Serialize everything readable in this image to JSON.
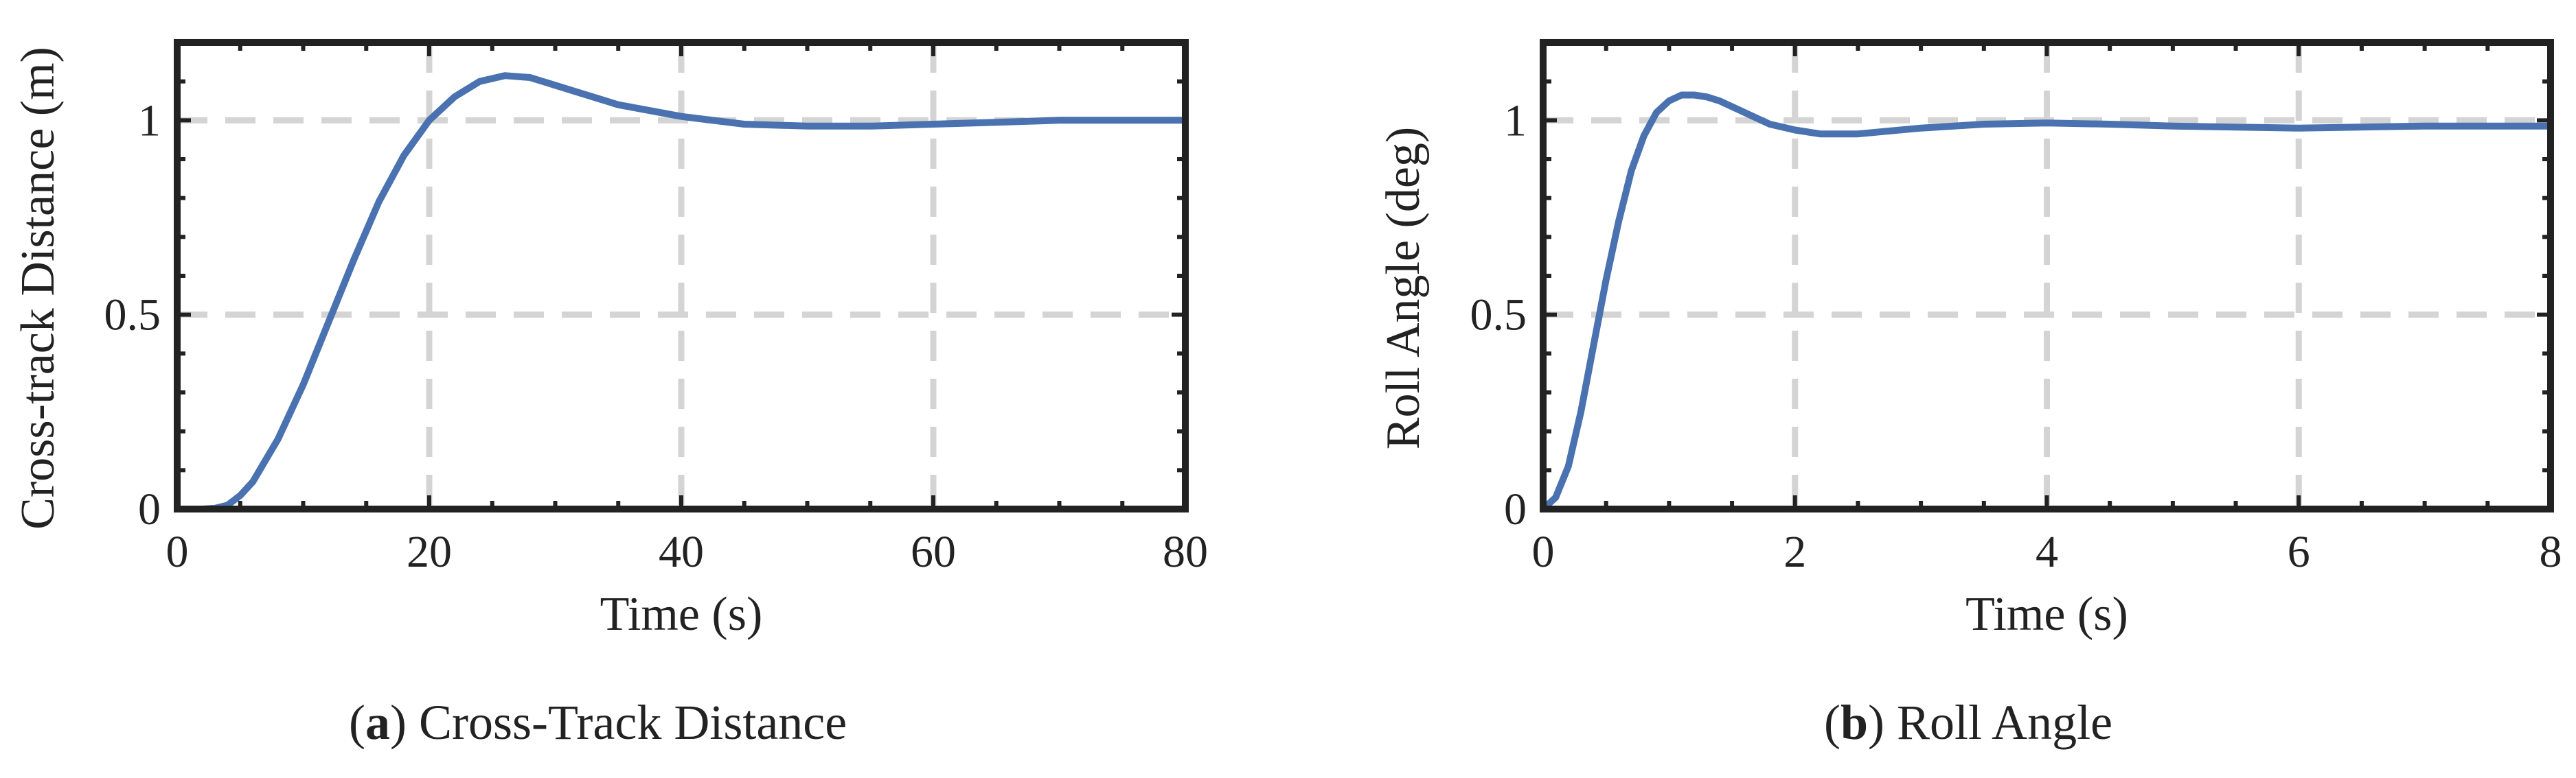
{
  "chart_data": [
    {
      "type": "line",
      "id": "a",
      "xlabel": "Time (s)",
      "ylabel": "Cross-track Distance (m)",
      "xlim": [
        0,
        80
      ],
      "ylim": [
        0,
        1.2
      ],
      "xticks": [
        0,
        20,
        40,
        60,
        80
      ],
      "xtick_labels": [
        "0",
        "20",
        "40",
        "60",
        "80"
      ],
      "yticks": [
        0,
        0.5,
        1
      ],
      "ytick_labels": [
        "0",
        "0.5",
        "1"
      ],
      "grid": true,
      "line_color": "#4a72b0",
      "series": [
        {
          "x": [
            0,
            2,
            3,
            4,
            5,
            6,
            8,
            10,
            12,
            14,
            16,
            18,
            20,
            22,
            24,
            26,
            28,
            30,
            32,
            35,
            40,
            45,
            50,
            55,
            60,
            65,
            70,
            75,
            80
          ],
          "values": [
            0,
            0,
            0.002,
            0.01,
            0.035,
            0.07,
            0.18,
            0.32,
            0.48,
            0.64,
            0.79,
            0.91,
            1.0,
            1.06,
            1.1,
            1.115,
            1.11,
            1.09,
            1.07,
            1.04,
            1.01,
            0.99,
            0.985,
            0.985,
            0.99,
            0.995,
            1.0,
            1.0,
            1.0
          ]
        }
      ]
    },
    {
      "type": "line",
      "id": "b",
      "xlabel": "Time (s)",
      "ylabel": "Roll Angle (deg)",
      "xlim": [
        0,
        8
      ],
      "ylim": [
        0,
        1.2
      ],
      "xticks": [
        0,
        2,
        4,
        6,
        8
      ],
      "xtick_labels": [
        "0",
        "2",
        "4",
        "6",
        "8"
      ],
      "yticks": [
        0,
        0.5,
        1
      ],
      "ytick_labels": [
        "0",
        "0.5",
        "1"
      ],
      "grid": true,
      "line_color": "#4a72b0",
      "series": [
        {
          "x": [
            0,
            0.1,
            0.2,
            0.3,
            0.4,
            0.5,
            0.6,
            0.7,
            0.8,
            0.9,
            1.0,
            1.1,
            1.2,
            1.3,
            1.4,
            1.6,
            1.8,
            2.0,
            2.2,
            2.5,
            3.0,
            3.5,
            4.0,
            4.5,
            5.0,
            6.0,
            7.0,
            8.0
          ],
          "values": [
            0,
            0.03,
            0.11,
            0.25,
            0.42,
            0.59,
            0.74,
            0.87,
            0.96,
            1.02,
            1.05,
            1.065,
            1.065,
            1.06,
            1.05,
            1.02,
            0.99,
            0.975,
            0.965,
            0.965,
            0.98,
            0.99,
            0.993,
            0.99,
            0.985,
            0.98,
            0.985,
            0.985
          ]
        }
      ]
    }
  ],
  "captions": {
    "a_letter": "a",
    "a_text": " Cross-Track Distance",
    "b_letter": "b",
    "b_text": " Roll Angle"
  }
}
